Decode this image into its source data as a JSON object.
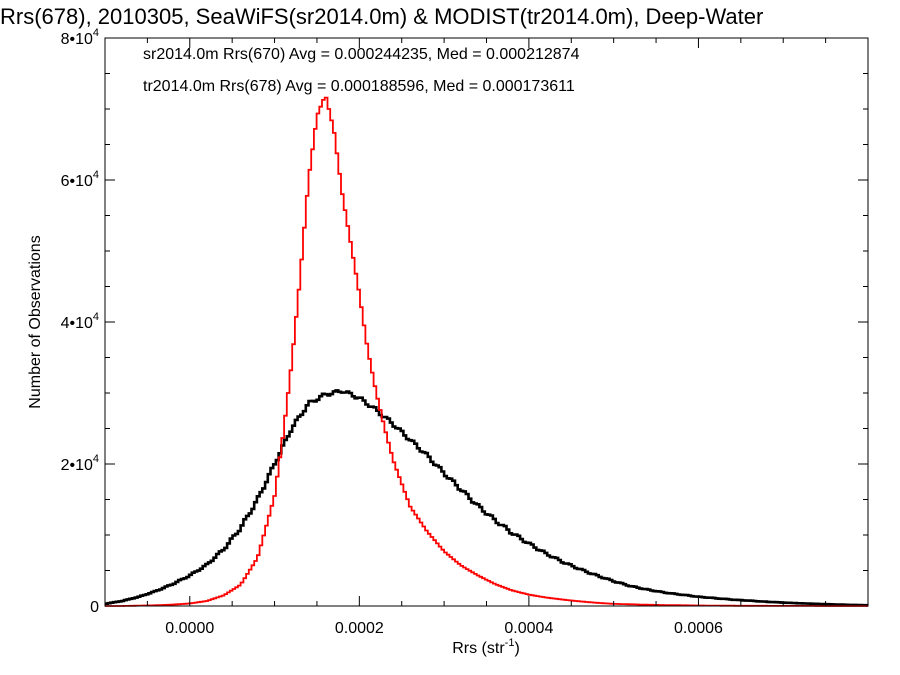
{
  "chart_data": {
    "type": "line",
    "title": "Rrs(678), 2010305, SeaWiFS(sr2014.0m) & MODIST(tr2014.0m), Deep-Water",
    "xlabel": "Rrs (str",
    "xlabel_sup": "-1",
    "xlabel_end": ")",
    "ylabel": "Number of Observations",
    "xlim": [
      -0.0001,
      0.0008
    ],
    "ylim": [
      0,
      80000
    ],
    "xticks": [
      {
        "value": 0.0,
        "label": "0.0000"
      },
      {
        "value": 0.0002,
        "label": "0.0002"
      },
      {
        "value": 0.0004,
        "label": "0.0004"
      },
      {
        "value": 0.0006,
        "label": "0.0006"
      }
    ],
    "yticks": [
      {
        "value": 0,
        "mant": "0",
        "exp": ""
      },
      {
        "value": 20000,
        "mant": "2•10",
        "exp": "4"
      },
      {
        "value": 40000,
        "mant": "4•10",
        "exp": "4"
      },
      {
        "value": 60000,
        "mant": "6•10",
        "exp": "4"
      },
      {
        "value": 80000,
        "mant": "8•10",
        "exp": "4"
      }
    ],
    "grid": false,
    "series": [
      {
        "name": "sr2014.0m Rrs(670) Avg = 0.000244235, Med = 0.000212874",
        "color": "#000000",
        "x": [
          -0.0001,
          -8e-05,
          -6e-05,
          -4e-05,
          -2e-05,
          0.0,
          2e-05,
          4e-05,
          6e-05,
          8e-05,
          0.0001,
          0.00012,
          0.00014,
          0.00016,
          0.00018,
          0.0002,
          0.00022,
          0.00024,
          0.00026,
          0.00028,
          0.0003,
          0.00032,
          0.00034,
          0.00036,
          0.00038,
          0.0004,
          0.00042,
          0.00044,
          0.00046,
          0.00048,
          0.0005,
          0.00052,
          0.00054,
          0.00056,
          0.00058,
          0.0006,
          0.00062,
          0.00064,
          0.00066,
          0.00068,
          0.0007,
          0.00072,
          0.00074,
          0.00076,
          0.00078,
          0.0008
        ],
        "y": [
          300,
          700,
          1300,
          2100,
          3100,
          4300,
          5800,
          8000,
          11000,
          15000,
          20000,
          25000,
          28500,
          29800,
          30300,
          29300,
          27600,
          25600,
          23400,
          21200,
          18700,
          16400,
          14100,
          12100,
          10300,
          8800,
          7400,
          6200,
          5200,
          4300,
          3500,
          2800,
          2300,
          1900,
          1600,
          1300,
          1100,
          900,
          750,
          600,
          480,
          380,
          300,
          220,
          160,
          100
        ]
      },
      {
        "name": "tr2014.0m Rrs(678) Avg = 0.000188596, Med = 0.000173611",
        "color": "#ff0000",
        "x": [
          -0.0001,
          -8e-05,
          -6e-05,
          -4e-05,
          -2e-05,
          0.0,
          2e-05,
          4e-05,
          6e-05,
          8e-05,
          0.0001,
          0.00011,
          0.00012,
          0.00013,
          0.00014,
          0.00015,
          0.00016,
          0.00017,
          0.00018,
          0.00019,
          0.0002,
          0.00021,
          0.00022,
          0.00023,
          0.00024,
          0.00026,
          0.00028,
          0.0003,
          0.00032,
          0.00034,
          0.00036,
          0.00038,
          0.0004,
          0.00042,
          0.00044,
          0.00046,
          0.00048,
          0.0005,
          0.00055,
          0.0006,
          0.00065,
          0.0007,
          0.00075,
          0.0008
        ],
        "y": [
          0,
          0,
          50,
          100,
          200,
          350,
          700,
          1500,
          3000,
          6800,
          15500,
          24000,
          34000,
          46000,
          60000,
          69000,
          72000,
          67000,
          58000,
          51000,
          44000,
          36000,
          30000,
          25000,
          20500,
          14000,
          10500,
          7700,
          5700,
          4300,
          3100,
          2200,
          1600,
          1200,
          900,
          650,
          450,
          300,
          150,
          70,
          30,
          15,
          5,
          0
        ]
      }
    ]
  }
}
